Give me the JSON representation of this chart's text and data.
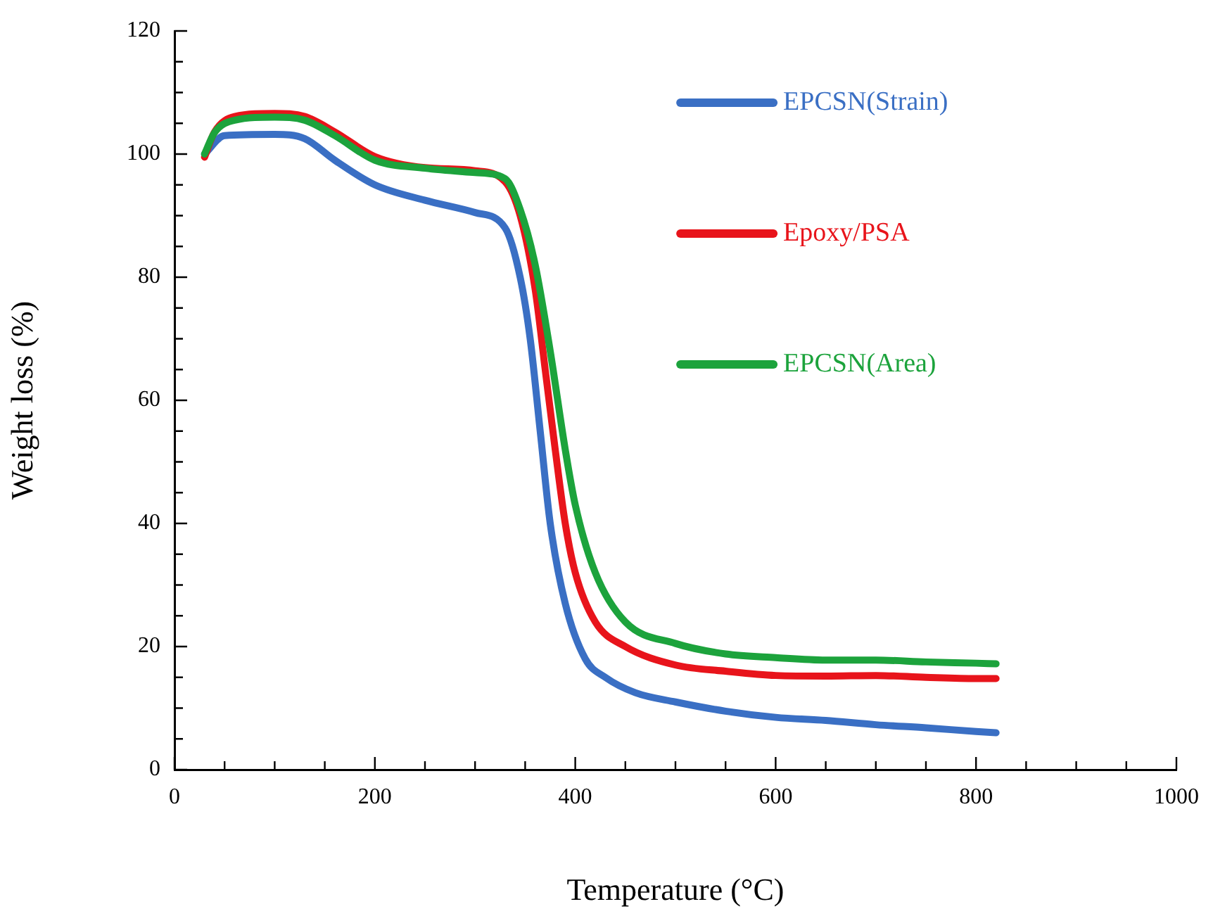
{
  "chart_data": {
    "type": "line",
    "xlabel": "Temperature (°C)",
    "ylabel": "Weight loss (%)",
    "xlim": [
      0,
      1000
    ],
    "xticks": [
      0,
      200,
      400,
      600,
      800,
      1000
    ],
    "ylim": [
      0,
      120
    ],
    "yticks": [
      0,
      20,
      40,
      60,
      80,
      100,
      120
    ],
    "grid": false,
    "legend": "top right",
    "marker": "none",
    "line_style": "solid",
    "series": [
      {
        "name": "EPCSN(Strain)",
        "color": "#3a6fc4",
        "x": [
          30,
          50,
          100,
          130,
          160,
          200,
          250,
          300,
          330,
          345,
          355,
          365,
          375,
          390,
          410,
          430,
          460,
          500,
          550,
          600,
          650,
          700,
          750,
          800,
          820
        ],
        "values": [
          100,
          103,
          103.2,
          102.5,
          99,
          95,
          92.5,
          90.5,
          88,
          80,
          70,
          55,
          40,
          27,
          18,
          15,
          12.5,
          11,
          9.5,
          8.5,
          8,
          7.3,
          6.8,
          6.2,
          6
        ]
      },
      {
        "name": "Epoxy/PSA",
        "color": "#e8141b",
        "x": [
          30,
          40,
          60,
          100,
          130,
          160,
          200,
          250,
          300,
          330,
          345,
          360,
          370,
          380,
          390,
          400,
          420,
          450,
          500,
          550,
          600,
          650,
          700,
          750,
          800,
          820
        ],
        "values": [
          99.5,
          103.6,
          106.1,
          106.6,
          106.1,
          103.6,
          99.6,
          97.8,
          97.3,
          95.5,
          90,
          78,
          65,
          52,
          40,
          32,
          24,
          20,
          17,
          16,
          15.3,
          15.2,
          15.3,
          15,
          14.8,
          14.8
        ]
      },
      {
        "name": "EPCSN(Area)",
        "color": "#1ca33c",
        "x": [
          30,
          40,
          60,
          100,
          130,
          160,
          200,
          250,
          300,
          330,
          345,
          360,
          375,
          390,
          400,
          420,
          450,
          500,
          550,
          600,
          650,
          700,
          750,
          800,
          820
        ],
        "values": [
          100,
          103.5,
          105.5,
          106,
          105.5,
          103,
          99,
          97.7,
          97,
          96,
          91,
          82,
          68,
          52,
          43,
          32,
          24,
          20.5,
          18.8,
          18.2,
          17.8,
          17.8,
          17.5,
          17.3,
          17.2
        ]
      }
    ]
  }
}
